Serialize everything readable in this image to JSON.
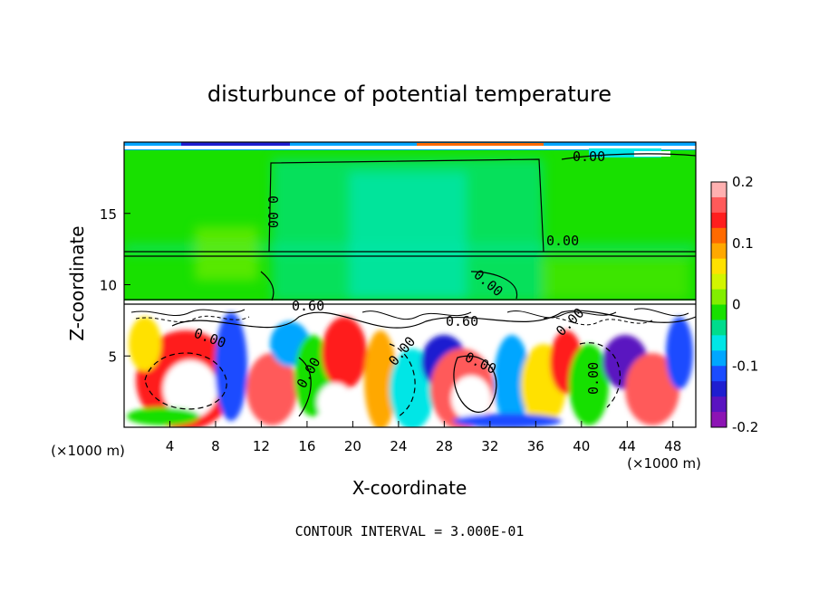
{
  "chart_data": {
    "type": "heatmap",
    "title": "disturbunce of potential temperature",
    "xlabel": "X-coordinate",
    "ylabel": "Z-coordinate",
    "x_unit_label": "(×1000 m)",
    "y_unit_label": "(×1000 m)",
    "xlim": [
      0,
      50
    ],
    "ylim": [
      0,
      20
    ],
    "xticks": [
      "4",
      "8",
      "12",
      "16",
      "20",
      "24",
      "28",
      "32",
      "36",
      "40",
      "44",
      "48"
    ],
    "yticks": [
      "5",
      "10",
      "15"
    ],
    "colorbar": {
      "vmin": -0.2,
      "vmax": 0.2,
      "ticks": [
        "0.2",
        "0.1",
        "0",
        "-0.1",
        "-0.2"
      ],
      "colors": [
        "#ffb0b0",
        "#ff5a5a",
        "#ff1e1e",
        "#ff6a00",
        "#ffa800",
        "#ffe100",
        "#d2f500",
        "#82ee00",
        "#18e000",
        "#00dc8c",
        "#00e6e6",
        "#00a6ff",
        "#1a4cff",
        "#1e1ed0",
        "#5a14c0",
        "#8c14b4"
      ]
    },
    "contour_labels": [
      "0.00",
      "0.00",
      "0.00",
      "0.00",
      "0.60",
      "0.60",
      "0.00",
      "0.00",
      "0.00",
      "0.00",
      "0.00",
      "0.00"
    ],
    "footer": "CONTOUR INTERVAL = 3.000E-01"
  }
}
